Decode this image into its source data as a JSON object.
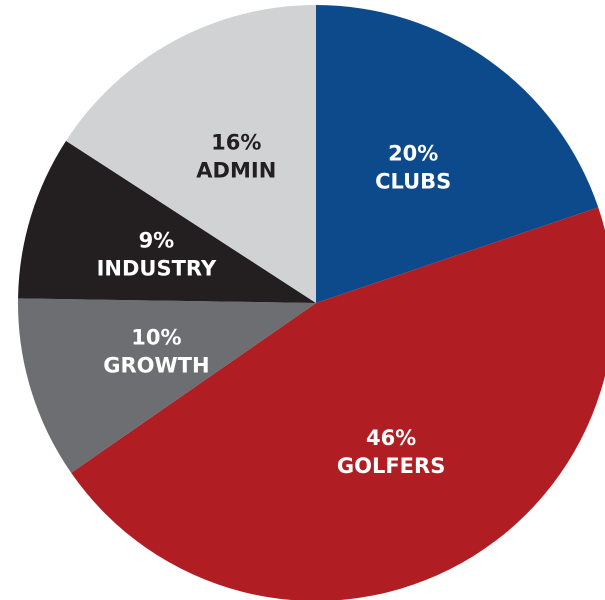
{
  "chart_data": {
    "type": "pie",
    "start": "12 o'clock",
    "direction": "clockwise",
    "slices": [
      {
        "category": "CLUBS",
        "value": 20,
        "percent_label": "20%",
        "name_label": "CLUBS",
        "color": "#0d4a8b",
        "text_color": "#ffffff"
      },
      {
        "category": "GOLFERS",
        "value": 46,
        "percent_label": "46%",
        "name_label": "GOLFERS",
        "color": "#b01e24",
        "text_color": "#ffffff"
      },
      {
        "category": "GROWTH",
        "value": 10,
        "percent_label": "10%",
        "name_label": "GROWTH",
        "color": "#6d6e71",
        "text_color": "#ffffff"
      },
      {
        "category": "INDUSTRY",
        "value": 9,
        "percent_label": "9%",
        "name_label": "INDUSTRY",
        "color": "#231f20",
        "text_color": "#ffffff"
      },
      {
        "category": "ADMIN",
        "value": 16,
        "percent_label": "16%",
        "name_label": "ADMIN",
        "color": "#d1d2d4",
        "text_color": "#231f20"
      }
    ]
  }
}
